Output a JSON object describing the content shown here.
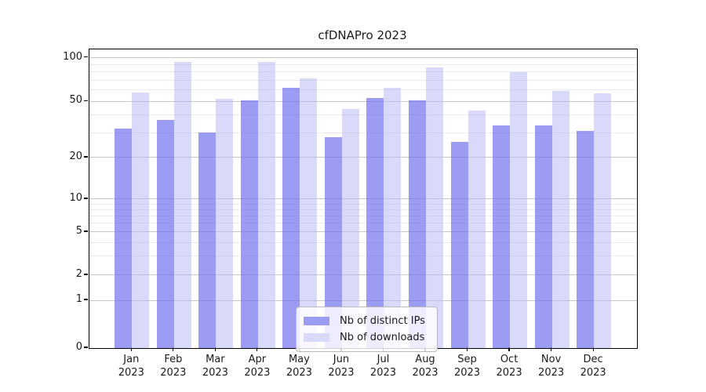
{
  "title": "cfDNAPro 2023",
  "legend": {
    "items": [
      "Nb of distinct IPs",
      "Nb of downloads"
    ]
  },
  "chart_data": {
    "type": "bar",
    "title": "cfDNAPro 2023",
    "categories": [
      "Jan",
      "Feb",
      "Mar",
      "Apr",
      "May",
      "Jun",
      "Jul",
      "Aug",
      "Sep",
      "Oct",
      "Nov",
      "Dec"
    ],
    "category_year_line": "2023",
    "series": [
      {
        "name": "Nb of distinct IPs",
        "color": "#9c9cf2",
        "fill": "rgba(118,118,237,0.72)",
        "values": [
          32,
          37,
          30,
          51,
          62,
          28,
          53,
          51,
          26,
          34,
          34,
          31
        ]
      },
      {
        "name": "Nb of downloads",
        "color": "#d9d9fa",
        "fill": "rgba(185,185,246,0.55)",
        "values": [
          58,
          93,
          52,
          93,
          72,
          44,
          62,
          86,
          43,
          80,
          59,
          57
        ]
      }
    ],
    "xlabel": "",
    "ylabel": "",
    "yscale": "symlog",
    "yticks": [
      100,
      50,
      20,
      10,
      5,
      2,
      1,
      0
    ],
    "yticks_minor": [
      3,
      4,
      6,
      7,
      8,
      9,
      30,
      40,
      60,
      70,
      80,
      90
    ],
    "ylim": [
      0,
      110
    ],
    "grid": true,
    "legend_position": "lower center"
  }
}
